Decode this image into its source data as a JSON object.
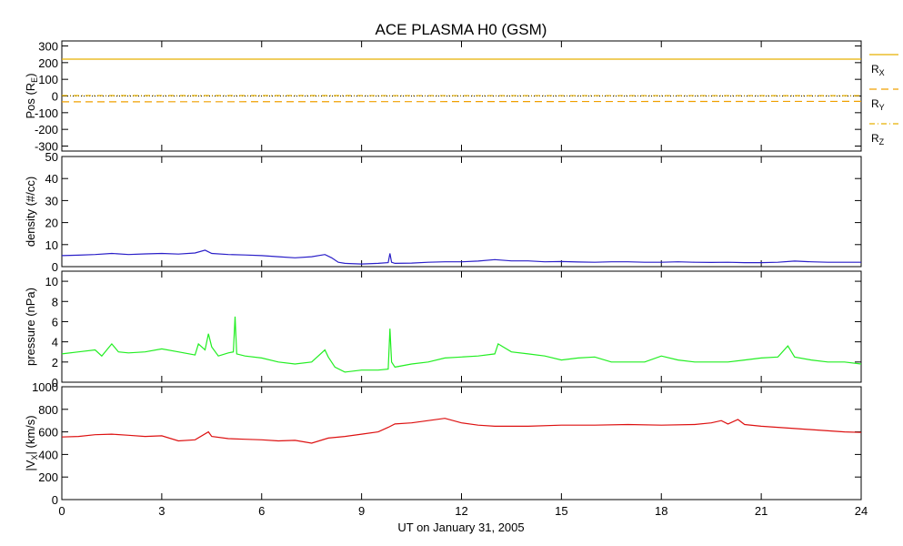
{
  "figure": {
    "title": "ACE PLASMA H0 (GSM)",
    "xlabel": "UT on January 31, 2005"
  },
  "chart_data": [
    {
      "type": "line",
      "panel": "position",
      "ylabel": "Pos (R",
      "ylabel_sub": "E",
      "ylabel_end": ")",
      "ylim": [
        -330,
        330
      ],
      "yticks": [
        300,
        200,
        100,
        0,
        -100,
        -200,
        -300
      ],
      "xlim": [
        0,
        24
      ],
      "series": [
        {
          "name": "R",
          "sub": "X",
          "color": "#e8b000",
          "style": "solid",
          "x": [
            0,
            24
          ],
          "values": [
            221,
            221
          ]
        },
        {
          "name": "R",
          "sub": "Y",
          "color": "#f0a000",
          "style": "dashed",
          "x": [
            0,
            24
          ],
          "values": [
            -35,
            -32
          ]
        },
        {
          "name": "R",
          "sub": "Z",
          "color": "#e8b000",
          "style": "dashdot",
          "x": [
            0,
            24
          ],
          "values": [
            3,
            2
          ]
        }
      ]
    },
    {
      "type": "line",
      "panel": "density",
      "ylabel": "density (#/cc)",
      "ylim": [
        0,
        50
      ],
      "yticks": [
        50,
        40,
        30,
        20,
        10,
        0
      ],
      "xlim": [
        0,
        24
      ],
      "series": [
        {
          "color": "#2a1fc8",
          "x": [
            0,
            0.5,
            1,
            1.5,
            2,
            2.5,
            3,
            3.5,
            4,
            4.3,
            4.5,
            5,
            5.5,
            6,
            6.5,
            7,
            7.5,
            7.9,
            8.1,
            8.3,
            8.5,
            9,
            9.5,
            9.8,
            9.85,
            9.9,
            10,
            10.5,
            11,
            11.5,
            12,
            12.5,
            13,
            13.5,
            14,
            14.5,
            15,
            15.5,
            16,
            16.5,
            17,
            17.5,
            18,
            18.5,
            19,
            19.5,
            20,
            20.5,
            21,
            21.5,
            22,
            22.5,
            23,
            23.5,
            24
          ],
          "values": [
            5,
            5.2,
            5.5,
            6,
            5.5,
            5.8,
            6,
            5.7,
            6.2,
            7.5,
            6,
            5.5,
            5.3,
            5,
            4.5,
            4,
            4.5,
            5.5,
            4,
            2,
            1.5,
            1.2,
            1.5,
            1.8,
            6,
            2,
            1.5,
            1.6,
            2,
            2.2,
            2.2,
            2.5,
            3.2,
            2.6,
            2.6,
            2.2,
            2.3,
            2.1,
            2,
            2.2,
            2.2,
            2,
            2,
            2.2,
            2,
            1.9,
            2,
            1.8,
            1.8,
            2,
            2.5,
            2.2,
            2,
            2,
            2
          ]
        }
      ]
    },
    {
      "type": "line",
      "panel": "pressure",
      "ylabel": "pressure (nPa)",
      "ylim": [
        0,
        11
      ],
      "yticks": [
        10,
        8,
        6,
        4,
        2,
        0
      ],
      "xlim": [
        0,
        24
      ],
      "series": [
        {
          "color": "#22ee22",
          "x": [
            0,
            0.5,
            1,
            1.2,
            1.5,
            1.7,
            2,
            2.5,
            3,
            3.5,
            4,
            4.1,
            4.3,
            4.4,
            4.5,
            4.7,
            5,
            5.15,
            5.2,
            5.25,
            5.5,
            6,
            6.5,
            7,
            7.5,
            7.9,
            8,
            8.2,
            8.5,
            9,
            9.5,
            9.8,
            9.85,
            9.9,
            10,
            10.5,
            11,
            11.5,
            12,
            12.5,
            13,
            13.1,
            13.5,
            14,
            14.5,
            15,
            15.5,
            16,
            16.5,
            17,
            17.5,
            18,
            18.5,
            19,
            19.5,
            20,
            20.5,
            21,
            21.5,
            21.8,
            22,
            22.5,
            23,
            23.5,
            24
          ],
          "values": [
            2.8,
            3,
            3.2,
            2.6,
            3.8,
            3,
            2.9,
            3,
            3.3,
            3,
            2.7,
            3.8,
            3.2,
            4.8,
            3.5,
            2.6,
            2.9,
            3,
            6.5,
            2.8,
            2.6,
            2.4,
            2,
            1.8,
            2,
            3.2,
            2.5,
            1.5,
            1,
            1.2,
            1.2,
            1.3,
            5.3,
            2,
            1.5,
            1.8,
            2,
            2.4,
            2.5,
            2.6,
            2.8,
            3.8,
            3,
            2.8,
            2.6,
            2.2,
            2.4,
            2.5,
            2,
            2,
            2,
            2.6,
            2.2,
            2,
            2,
            2,
            2.2,
            2.4,
            2.5,
            3.6,
            2.5,
            2.2,
            2,
            2,
            1.8
          ]
        }
      ]
    },
    {
      "type": "line",
      "panel": "velocity",
      "ylabel": "|V",
      "ylabel_sub": "X",
      "ylabel_end": "| (km/s)",
      "ylim": [
        0,
        1000
      ],
      "yticks": [
        1000,
        800,
        600,
        400,
        200,
        0
      ],
      "xlim": [
        0,
        24
      ],
      "series": [
        {
          "color": "#dd1111",
          "x": [
            0,
            0.5,
            1,
            1.5,
            2,
            2.5,
            3,
            3.5,
            4,
            4.4,
            4.5,
            5,
            5.5,
            6,
            6.5,
            7,
            7.5,
            8,
            8.5,
            9,
            9.5,
            9.8,
            10,
            10.5,
            11,
            11.5,
            12,
            12.5,
            13,
            14,
            15,
            16,
            17,
            18,
            19,
            19.5,
            19.8,
            20,
            20.3,
            20.5,
            21,
            21.5,
            22,
            22.5,
            23,
            23.5,
            24
          ],
          "values": [
            555,
            560,
            575,
            580,
            570,
            560,
            565,
            520,
            530,
            600,
            560,
            540,
            535,
            530,
            520,
            525,
            500,
            545,
            560,
            580,
            600,
            640,
            670,
            680,
            700,
            720,
            680,
            660,
            650,
            650,
            660,
            660,
            665,
            660,
            665,
            680,
            700,
            670,
            710,
            665,
            650,
            640,
            630,
            620,
            610,
            600,
            595
          ]
        }
      ]
    }
  ],
  "xaxis": {
    "ticks": [
      0,
      3,
      6,
      9,
      12,
      15,
      18,
      21,
      24
    ]
  }
}
